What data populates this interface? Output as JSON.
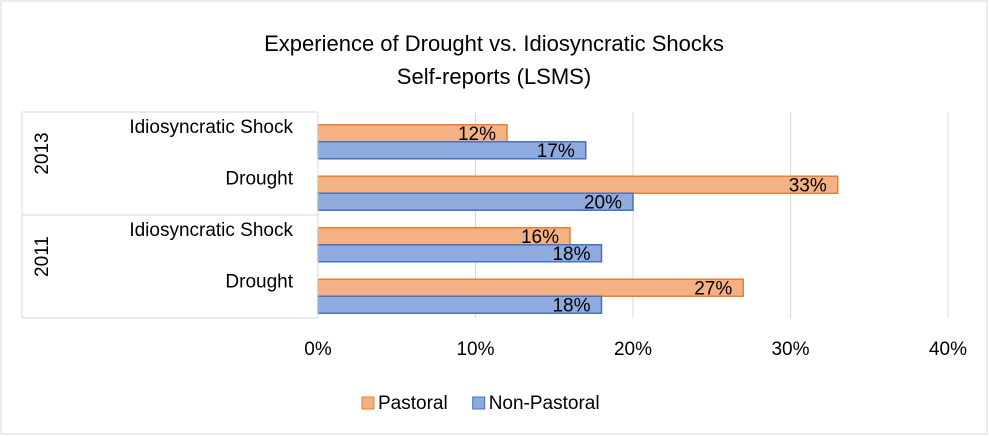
{
  "chart_data": {
    "type": "bar",
    "orientation": "horizontal",
    "title": [
      "Experience of Drought vs. Idiosyncratic Shocks",
      "Self-reports (LSMS)"
    ],
    "groups": [
      {
        "name": "2013",
        "categories": [
          "Idiosyncratic Shock",
          "Drought"
        ]
      },
      {
        "name": "2011",
        "categories": [
          "Idiosyncratic Shock",
          "Drought"
        ]
      }
    ],
    "series": [
      {
        "name": "Pastoral",
        "color": "#f4b183",
        "edge": "#ed7d31",
        "values": [
          12,
          33,
          16,
          27
        ],
        "value_labels": [
          "12%",
          "33%",
          "16%",
          "27%"
        ]
      },
      {
        "name": "Non-Pastoral",
        "color": "#8faadc",
        "edge": "#4472c4",
        "values": [
          17,
          20,
          18,
          18
        ],
        "value_labels": [
          "17%",
          "20%",
          "18%",
          "18%"
        ]
      }
    ],
    "xlim": [
      0,
      40
    ],
    "xticks": [
      {
        "value": 0,
        "label": "0%"
      },
      {
        "value": 10,
        "label": "10%"
      },
      {
        "value": 20,
        "label": "20%"
      },
      {
        "value": 30,
        "label": "30%"
      },
      {
        "value": 40,
        "label": "40%"
      }
    ],
    "grid": true,
    "legend": "bottom"
  }
}
